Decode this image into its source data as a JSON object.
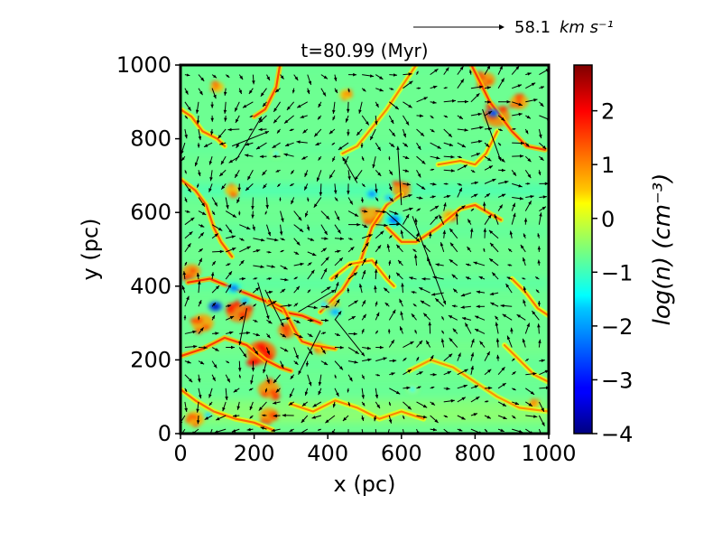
{
  "chart_data": {
    "type": "heatmap",
    "title": "t=80.99 (Myr)",
    "xlabel": "x (pc)",
    "ylabel": "y (pc)",
    "xlim": [
      0,
      1000
    ],
    "ylim": [
      0,
      1000
    ],
    "xticks": [
      0,
      200,
      400,
      600,
      800,
      1000
    ],
    "yticks": [
      0,
      200,
      400,
      600,
      800,
      1000
    ],
    "colorbar": {
      "label": "log(n) (cm⁻³)",
      "range": [
        -4,
        2.85
      ],
      "ticks": [
        "−4",
        "−3",
        "−2",
        "−1",
        "0",
        "1",
        "2"
      ],
      "tick_values": [
        -4,
        -3,
        -2,
        -1,
        0,
        1,
        2
      ],
      "colormap": "jet"
    },
    "background_value": -0.7,
    "dense_filaments": [
      {
        "points": [
          [
            0,
            210
          ],
          [
            60,
            230
          ],
          [
            120,
            260
          ],
          [
            180,
            240
          ],
          [
            230,
            200
          ],
          [
            270,
            180
          ],
          [
            300,
            170
          ]
        ],
        "value": 1.6
      },
      {
        "points": [
          [
            20,
            410
          ],
          [
            80,
            420
          ],
          [
            130,
            400
          ],
          [
            180,
            380
          ],
          [
            230,
            360
          ],
          [
            280,
            330
          ],
          [
            330,
            320
          ],
          [
            380,
            300
          ]
        ],
        "value": 1.7
      },
      {
        "points": [
          [
            240,
            360
          ],
          [
            280,
            340
          ],
          [
            310,
            280
          ],
          [
            330,
            250
          ],
          [
            360,
            240
          ],
          [
            420,
            230
          ]
        ],
        "value": 1.5
      },
      {
        "points": [
          [
            380,
            330
          ],
          [
            440,
            390
          ],
          [
            490,
            470
          ],
          [
            520,
            560
          ],
          [
            560,
            620
          ],
          [
            600,
            650
          ]
        ],
        "value": 1.4
      },
      {
        "points": [
          [
            560,
            560
          ],
          [
            600,
            520
          ],
          [
            640,
            520
          ],
          [
            700,
            560
          ],
          [
            760,
            610
          ],
          [
            800,
            620
          ],
          [
            870,
            580
          ]
        ],
        "value": 1.4
      },
      {
        "points": [
          [
            410,
            420
          ],
          [
            460,
            460
          ],
          [
            520,
            470
          ],
          [
            560,
            420
          ],
          [
            580,
            400
          ]
        ],
        "value": 1.2
      },
      {
        "points": [
          [
            200,
            860
          ],
          [
            230,
            880
          ],
          [
            260,
            940
          ],
          [
            270,
            1000
          ]
        ],
        "value": 1.5
      },
      {
        "points": [
          [
            0,
            880
          ],
          [
            30,
            860
          ],
          [
            60,
            820
          ],
          [
            100,
            800
          ],
          [
            120,
            780
          ]
        ],
        "value": 1.3
      },
      {
        "points": [
          [
            790,
            1000
          ],
          [
            810,
            960
          ],
          [
            840,
            900
          ],
          [
            870,
            860
          ],
          [
            900,
            820
          ],
          [
            940,
            780
          ],
          [
            990,
            770
          ]
        ],
        "value": 1.6
      },
      {
        "points": [
          [
            700,
            730
          ],
          [
            760,
            740
          ],
          [
            800,
            730
          ],
          [
            830,
            760
          ],
          [
            860,
            820
          ]
        ],
        "value": 1.2
      },
      {
        "points": [
          [
            0,
            690
          ],
          [
            40,
            660
          ],
          [
            70,
            620
          ],
          [
            90,
            560
          ],
          [
            110,
            520
          ],
          [
            140,
            480
          ]
        ],
        "value": 1.4
      },
      {
        "points": [
          [
            0,
            120
          ],
          [
            40,
            90
          ],
          [
            90,
            60
          ],
          [
            150,
            40
          ],
          [
            200,
            30
          ],
          [
            250,
            10
          ]
        ],
        "value": 1.3
      },
      {
        "points": [
          [
            300,
            80
          ],
          [
            360,
            60
          ],
          [
            420,
            90
          ],
          [
            480,
            70
          ],
          [
            540,
            40
          ],
          [
            600,
            60
          ],
          [
            660,
            40
          ]
        ],
        "value": 1.1
      },
      {
        "points": [
          [
            900,
            420
          ],
          [
            940,
            380
          ],
          [
            970,
            340
          ],
          [
            1000,
            320
          ]
        ],
        "value": 1.2
      },
      {
        "points": [
          [
            620,
            170
          ],
          [
            680,
            200
          ],
          [
            740,
            180
          ],
          [
            800,
            140
          ],
          [
            860,
            100
          ],
          [
            920,
            70
          ],
          [
            1000,
            60
          ]
        ],
        "value": 1.0
      },
      {
        "points": [
          [
            440,
            760
          ],
          [
            480,
            780
          ],
          [
            520,
            830
          ],
          [
            560,
            880
          ],
          [
            600,
            940
          ],
          [
            640,
            1000
          ]
        ],
        "value": 1.1
      },
      {
        "points": [
          [
            880,
            240
          ],
          [
            920,
            200
          ],
          [
            960,
            160
          ],
          [
            1000,
            140
          ]
        ],
        "value": 1.1
      }
    ],
    "dense_blobs": [
      [
        220,
        220,
        40,
        1.9
      ],
      [
        160,
        330,
        35,
        1.8
      ],
      [
        290,
        280,
        25,
        1.7
      ],
      [
        240,
        120,
        30,
        1.6
      ],
      [
        60,
        300,
        30,
        1.5
      ],
      [
        30,
        440,
        25,
        1.6
      ],
      [
        520,
        590,
        30,
        1.5
      ],
      [
        600,
        660,
        25,
        1.6
      ],
      [
        860,
        860,
        35,
        1.7
      ],
      [
        920,
        900,
        25,
        1.5
      ],
      [
        830,
        960,
        25,
        1.6
      ],
      [
        40,
        40,
        25,
        1.4
      ],
      [
        240,
        50,
        25,
        1.6
      ],
      [
        140,
        660,
        20,
        1.3
      ],
      [
        730,
        590,
        20,
        1.3
      ],
      [
        410,
        350,
        20,
        1.4
      ],
      [
        380,
        230,
        18,
        1.3
      ],
      [
        450,
        920,
        18,
        1.2
      ],
      [
        100,
        940,
        18,
        1.3
      ],
      [
        960,
        80,
        15,
        1.3
      ]
    ],
    "low_density_regions": [
      [
        95,
        345,
        14,
        -3.6
      ],
      [
        145,
        395,
        16,
        -2.2
      ],
      [
        175,
        360,
        12,
        -2.0
      ],
      [
        520,
        650,
        15,
        -2.1
      ],
      [
        580,
        580,
        18,
        -2.4
      ],
      [
        565,
        640,
        12,
        -1.9
      ],
      [
        850,
        870,
        12,
        -3.0
      ],
      [
        420,
        330,
        16,
        -1.9
      ],
      [
        390,
        350,
        12,
        -1.6
      ],
      [
        75,
        50,
        10,
        -1.8
      ],
      [
        630,
        120,
        12,
        -1.3
      ],
      [
        260,
        760,
        12,
        -1.2
      ]
    ],
    "velocity_field": {
      "reference_arrow_label": "58.1",
      "reference_arrow_unit": "km s⁻¹",
      "long_vectors": [
        [
          140,
          780,
          240,
          820
        ],
        [
          150,
          740,
          220,
          860
        ],
        [
          630,
          590,
          720,
          350
        ],
        [
          600,
          620,
          590,
          780
        ],
        [
          380,
          280,
          320,
          160
        ],
        [
          420,
          310,
          500,
          210
        ],
        [
          560,
          600,
          650,
          520
        ],
        [
          820,
          880,
          870,
          740
        ],
        [
          210,
          410,
          240,
          310
        ],
        [
          230,
          390,
          280,
          290
        ],
        [
          320,
          330,
          420,
          390
        ],
        [
          480,
          680,
          440,
          750
        ],
        [
          180,
          340,
          160,
          240
        ]
      ]
    }
  }
}
